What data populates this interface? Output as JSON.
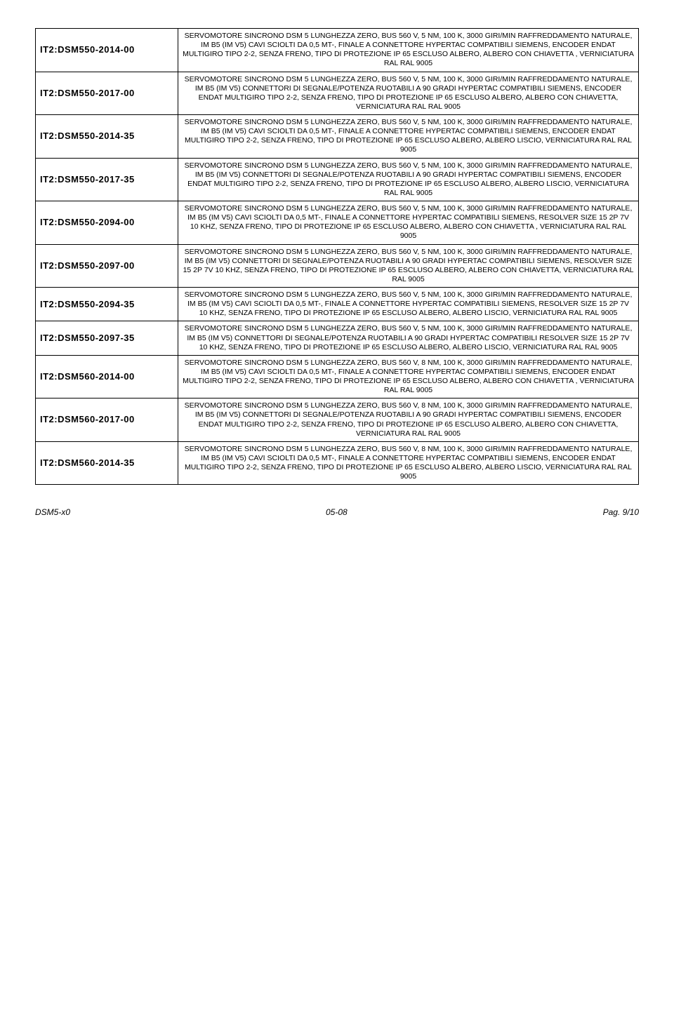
{
  "rows": [
    {
      "code": "IT2:DSM550-2014-00",
      "desc": "SERVOMOTORE SINCRONO DSM 5 LUNGHEZZA ZERO, BUS 560 V, 5 NM, 100 K, 3000 GIRI/MIN RAFFREDDAMENTO NATURALE, IM B5 (IM V5) CAVI SCIOLTI DA 0,5 MT-, FINALE A CONNETTORE HYPERTAC COMPATIBILI SIEMENS, ENCODER ENDAT MULTIGIRO TIPO 2-2, SENZA FRENO, TIPO DI PROTEZIONE IP 65 ESCLUSO ALBERO, ALBERO CON CHIAVETTA , VERNICIATURA  RAL RAL 9005"
    },
    {
      "code": "IT2:DSM550-2017-00",
      "desc": "SERVOMOTORE SINCRONO DSM 5 LUNGHEZZA ZERO, BUS 560 V, 5 NM, 100 K, 3000 GIRI/MIN RAFFREDDAMENTO NATURALE, IM B5 (IM V5) CONNETTORI DI SEGNALE/POTENZA RUOTABILI A 90 GRADI HYPERTAC COMPATIBILI SIEMENS, ENCODER ENDAT MULTIGIRO TIPO 2-2, SENZA FRENO, TIPO DI PROTEZIONE IP 65 ESCLUSO ALBERO, ALBERO CON CHIAVETTA, VERNICIATURA  RAL RAL 9005"
    },
    {
      "code": "IT2:DSM550-2014-35",
      "desc": "SERVOMOTORE SINCRONO DSM 5 LUNGHEZZA ZERO, BUS 560 V, 5 NM, 100 K, 3000 GIRI/MIN RAFFREDDAMENTO NATURALE, IM B5 (IM V5) CAVI SCIOLTI DA 0,5 MT-, FINALE A CONNETTORE HYPERTAC COMPATIBILI SIEMENS, ENCODER ENDAT MULTIGIRO TIPO 2-2, SENZA FRENO, TIPO DI PROTEZIONE IP 65 ESCLUSO ALBERO, ALBERO LISCIO, VERNICIATURA  RAL RAL 9005"
    },
    {
      "code": "IT2:DSM550-2017-35",
      "desc": "SERVOMOTORE SINCRONO DSM 5 LUNGHEZZA ZERO, BUS 560 V, 5 NM, 100 K, 3000 GIRI/MIN RAFFREDDAMENTO NATURALE, IM B5 (IM V5) CONNETTORI DI SEGNALE/POTENZA RUOTABILI A 90 GRADI HYPERTAC COMPATIBILI SIEMENS, ENCODER ENDAT MULTIGIRO TIPO 2-2, SENZA FRENO, TIPO DI PROTEZIONE IP 65 ESCLUSO ALBERO, ALBERO LISCIO, VERNICIATURA  RAL RAL 9005"
    },
    {
      "code": "IT2:DSM550-2094-00",
      "desc": "SERVOMOTORE SINCRONO DSM 5 LUNGHEZZA ZERO, BUS 560 V, 5 NM, 100 K, 3000 GIRI/MIN RAFFREDDAMENTO NATURALE, IM B5 (IM V5) CAVI SCIOLTI DA 0,5 MT-, FINALE A CONNETTORE HYPERTAC COMPATIBILI SIEMENS, RESOLVER SIZE 15 2P 7V 10 KHZ, SENZA FRENO, TIPO DI PROTEZIONE IP 65 ESCLUSO ALBERO, ALBERO CON CHIAVETTA , VERNICIATURA  RAL RAL 9005"
    },
    {
      "code": "IT2:DSM550-2097-00",
      "desc": "SERVOMOTORE SINCRONO DSM 5 LUNGHEZZA ZERO, BUS 560 V, 5 NM, 100 K, 3000 GIRI/MIN RAFFREDDAMENTO NATURALE, IM B5 (IM V5) CONNETTORI DI SEGNALE/POTENZA RUOTABILI A 90 GRADI HYPERTAC COMPATIBILI SIEMENS, RESOLVER SIZE 15 2P 7V 10 KHZ, SENZA FRENO, TIPO DI PROTEZIONE IP 65 ESCLUSO ALBERO, ALBERO CON CHIAVETTA, VERNICIATURA  RAL RAL 9005"
    },
    {
      "code": "IT2:DSM550-2094-35",
      "desc": "SERVOMOTORE SINCRONO DSM 5 LUNGHEZZA ZERO, BUS 560 V, 5 NM, 100 K, 3000 GIRI/MIN RAFFREDDAMENTO NATURALE, IM B5 (IM V5) CAVI SCIOLTI DA 0,5 MT-, FINALE A CONNETTORE HYPERTAC COMPATIBILI SIEMENS, RESOLVER SIZE 15 2P 7V 10 KHZ, SENZA FRENO, TIPO DI PROTEZIONE IP 65 ESCLUSO ALBERO, ALBERO LISCIO, VERNICIATURA  RAL RAL 9005"
    },
    {
      "code": "IT2:DSM550-2097-35",
      "desc": "SERVOMOTORE SINCRONO DSM 5 LUNGHEZZA ZERO, BUS 560 V, 5 NM, 100 K, 3000 GIRI/MIN RAFFREDDAMENTO NATURALE, IM B5 (IM V5) CONNETTORI DI SEGNALE/POTENZA RUOTABILI A 90 GRADI HYPERTAC COMPATIBILI RESOLVER SIZE 15 2P 7V 10 KHZ, SENZA FRENO, TIPO DI PROTEZIONE IP 65 ESCLUSO ALBERO, ALBERO LISCIO, VERNICIATURA  RAL RAL 9005"
    },
    {
      "code": "IT2:DSM560-2014-00",
      "desc": "SERVOMOTORE SINCRONO DSM 5 LUNGHEZZA ZERO, BUS 560 V, 8 NM, 100 K, 3000 GIRI/MIN RAFFREDDAMENTO NATURALE, IM B5 (IM V5) CAVI SCIOLTI DA 0,5 MT-, FINALE A CONNETTORE HYPERTAC COMPATIBILI SIEMENS, ENCODER ENDAT MULTIGIRO TIPO 2-2, SENZA FRENO, TIPO DI PROTEZIONE IP 65 ESCLUSO ALBERO, ALBERO CON CHIAVETTA , VERNICIATURA  RAL RAL 9005"
    },
    {
      "code": "IT2:DSM560-2017-00",
      "desc": "SERVOMOTORE SINCRONO DSM 5 LUNGHEZZA ZERO, BUS 560 V, 8 NM, 100 K, 3000 GIRI/MIN RAFFREDDAMENTO NATURALE, IM B5 (IM V5) CONNETTORI DI SEGNALE/POTENZA RUOTABILI A 90 GRADI HYPERTAC COMPATIBILI SIEMENS, ENCODER ENDAT MULTIGIRO TIPO 2-2, SENZA FRENO, TIPO DI PROTEZIONE IP 65 ESCLUSO ALBERO, ALBERO CON CHIAVETTA, VERNICIATURA  RAL RAL 9005"
    },
    {
      "code": "IT2:DSM560-2014-35",
      "desc": "SERVOMOTORE SINCRONO DSM 5 LUNGHEZZA ZERO, BUS 560 V, 8 NM, 100 K, 3000 GIRI/MIN RAFFREDDAMENTO NATURALE, IM B5 (IM V5) CAVI SCIOLTI DA 0,5 MT-, FINALE A CONNETTORE HYPERTAC COMPATIBILI SIEMENS, ENCODER ENDAT MULTIGIRO TIPO 2-2, SENZA FRENO, TIPO DI PROTEZIONE IP 65 ESCLUSO ALBERO, ALBERO LISCIO, VERNICIATURA  RAL RAL 9005"
    }
  ],
  "footer": {
    "left": "DSM5-x0",
    "center": "05-08",
    "right": "Pag. 9/10"
  }
}
